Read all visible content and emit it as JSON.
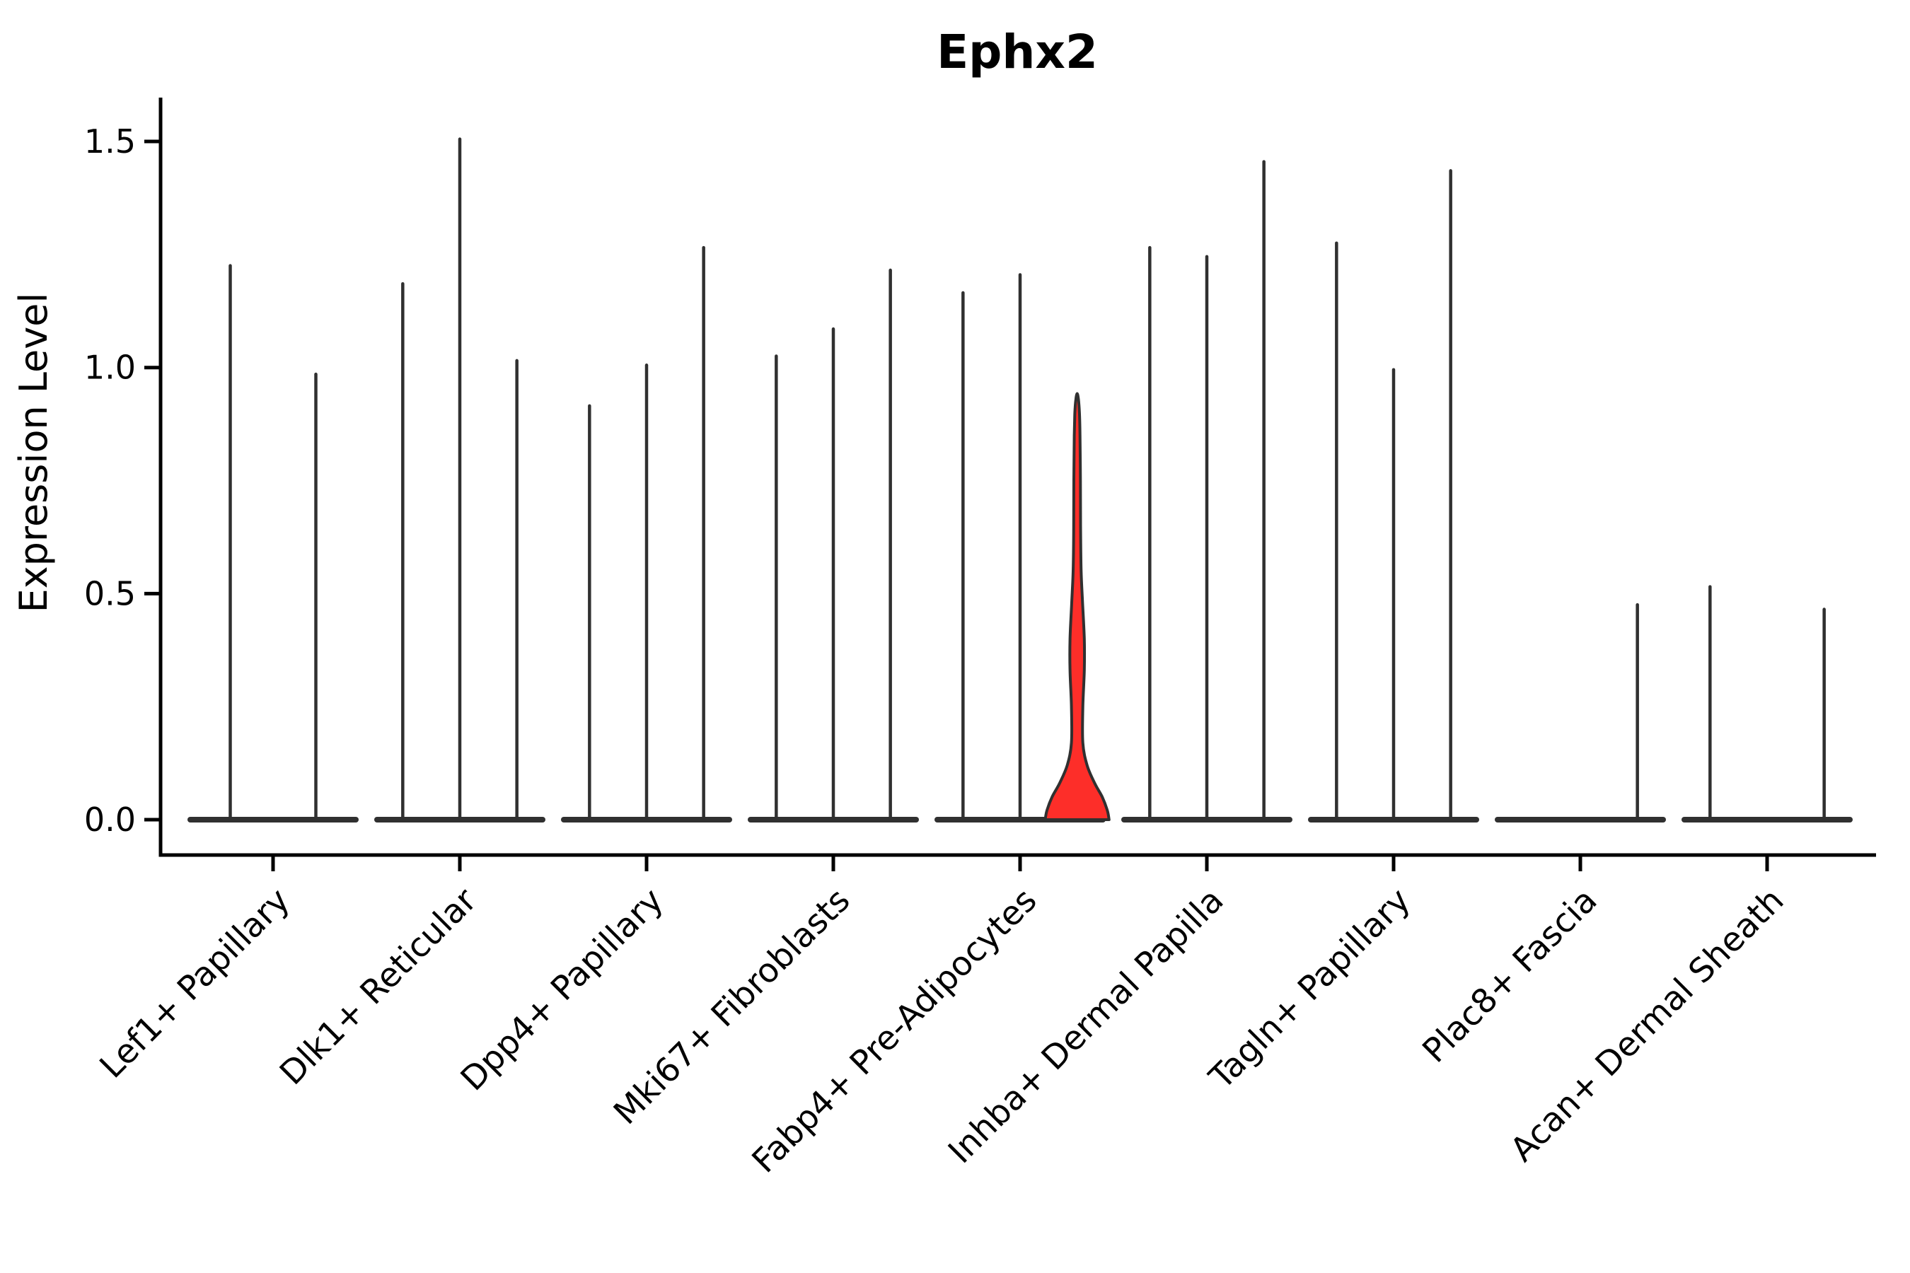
{
  "figure": {
    "background": "#ffffff"
  },
  "chart_data": {
    "type": "violin",
    "title": "Ephx2",
    "ylabel": "Expression Level",
    "xlabel": "",
    "grid": false,
    "legend": null,
    "yticks": [
      0.0,
      0.5,
      1.0,
      1.5
    ],
    "ylim": [
      -0.08,
      1.6
    ],
    "colors": {
      "violin_stroke": "#303030",
      "highlight_fill": "#fd2e29",
      "axis": "#000000",
      "text": "#000000"
    },
    "groups": [
      {
        "label": "Lef1+ Papillary",
        "violins": [
          {
            "max": 1.23
          },
          {
            "max": 0.99
          }
        ]
      },
      {
        "label": "Dlk1+ Reticular",
        "violins": [
          {
            "max": 1.19
          },
          {
            "max": 1.51
          },
          {
            "max": 1.02
          }
        ]
      },
      {
        "label": "Dpp4+ Papillary",
        "violins": [
          {
            "max": 0.92
          },
          {
            "max": 1.01
          },
          {
            "max": 1.27
          }
        ]
      },
      {
        "label": "Mki67+ Fibroblasts",
        "violins": [
          {
            "max": 1.03
          },
          {
            "max": 1.09
          },
          {
            "max": 1.22
          }
        ]
      },
      {
        "label": "Fabp4+ Pre-Adipocytes",
        "violins": [
          {
            "max": 1.17
          },
          {
            "max": 1.21
          },
          {
            "max": 0.93,
            "highlighted": true,
            "profile": [
              [
                0.0,
                1.12
              ],
              [
                0.02,
                1.06
              ],
              [
                0.05,
                0.88
              ],
              [
                0.08,
                0.62
              ],
              [
                0.12,
                0.35
              ],
              [
                0.17,
                0.2
              ],
              [
                0.25,
                0.2
              ],
              [
                0.33,
                0.25
              ],
              [
                0.4,
                0.25
              ],
              [
                0.48,
                0.19
              ],
              [
                0.55,
                0.14
              ],
              [
                0.65,
                0.12
              ],
              [
                0.75,
                0.115
              ],
              [
                0.85,
                0.1
              ],
              [
                0.9,
                0.08
              ],
              [
                0.93,
                0.045
              ]
            ]
          }
        ]
      },
      {
        "label": "Inhba+ Dermal Papilla",
        "violins": [
          {
            "max": 1.27
          },
          {
            "max": 1.25
          },
          {
            "max": 1.46
          }
        ]
      },
      {
        "label": "Tagln+ Papillary",
        "violins": [
          {
            "max": 1.28
          },
          {
            "max": 1.0
          },
          {
            "max": 1.44
          }
        ]
      },
      {
        "label": "Plac8+ Fascia",
        "violins": [
          {
            "max": 0
          },
          {
            "max": 0
          },
          {
            "max": 0.48
          }
        ]
      },
      {
        "label": "Acan+ Dermal Sheath",
        "violins": [
          {
            "max": 0.52
          },
          {
            "max": 0
          },
          {
            "max": 0.47
          }
        ]
      }
    ]
  }
}
